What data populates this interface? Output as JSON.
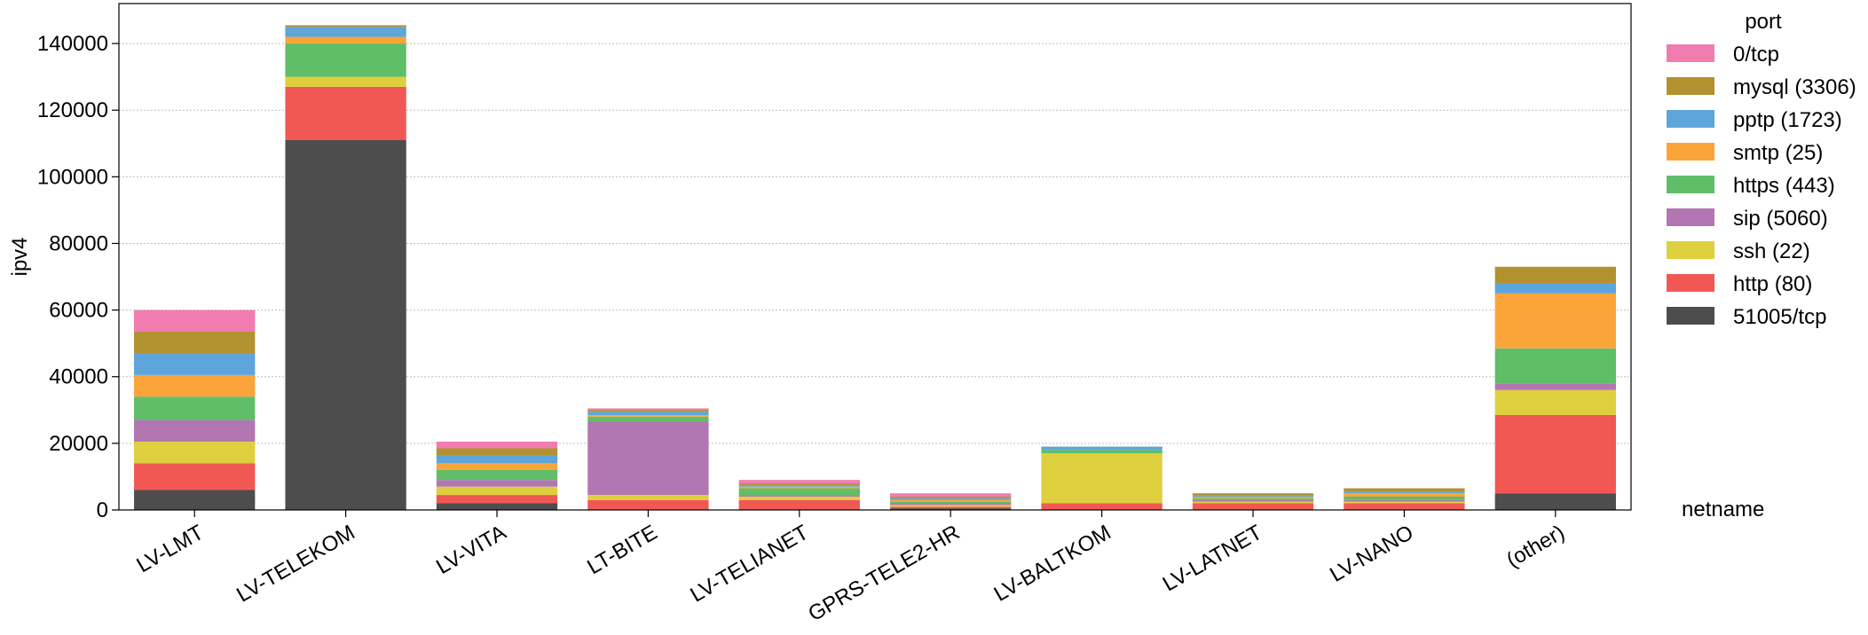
{
  "chart_data": {
    "type": "bar",
    "stacked": true,
    "ylabel": "ipv4",
    "xlabel": "netname",
    "ylim": [
      0,
      152000
    ],
    "yticks": [
      0,
      20000,
      40000,
      60000,
      80000,
      100000,
      120000,
      140000
    ],
    "grid": "horizontal, dotted",
    "categories": [
      "LV-LMT",
      "LV-TELEKOM",
      "LV-VITA",
      "LT-BITE",
      "LV-TELIANET",
      "GPRS-TELE2-HR",
      "LV-BALTKOM",
      "LV-LATNET",
      "LV-NANO",
      "(other)"
    ],
    "legend": {
      "title": "port",
      "placement": "right, outside"
    },
    "series": [
      {
        "name": "51005/tcp",
        "color": "#4d4d4d",
        "values": [
          6000,
          111000,
          2000,
          0,
          0,
          500,
          0,
          0,
          0,
          5000
        ]
      },
      {
        "name": "http (80)",
        "color": "#f15854",
        "values": [
          8000,
          16000,
          2500,
          3000,
          3000,
          500,
          2000,
          2000,
          2000,
          23500
        ]
      },
      {
        "name": "ssh (22)",
        "color": "#decf3f",
        "values": [
          6500,
          3000,
          2500,
          1500,
          1000,
          500,
          15000,
          500,
          500,
          7500
        ]
      },
      {
        "name": "sip (5060)",
        "color": "#b276b2",
        "values": [
          6500,
          0,
          2000,
          22000,
          500,
          500,
          0,
          500,
          500,
          2000
        ]
      },
      {
        "name": "https (443)",
        "color": "#60bd68",
        "values": [
          7000,
          10000,
          3000,
          1500,
          2000,
          500,
          1000,
          500,
          1000,
          10500
        ]
      },
      {
        "name": "smtp (25)",
        "color": "#faa43a",
        "values": [
          6500,
          2000,
          2000,
          500,
          500,
          500,
          0,
          500,
          1000,
          16500
        ]
      },
      {
        "name": "pptp (1723)",
        "color": "#5da5da",
        "values": [
          6500,
          3000,
          2500,
          1000,
          500,
          500,
          1000,
          500,
          500,
          3000
        ]
      },
      {
        "name": "mysql (3306)",
        "color": "#b2912f",
        "values": [
          6500,
          500,
          2000,
          500,
          500,
          500,
          0,
          500,
          1000,
          5000
        ]
      },
      {
        "name": "0/tcp",
        "color": "#f17cb0",
        "values": [
          6500,
          0,
          2000,
          500,
          1000,
          1000,
          0,
          0,
          0,
          0
        ]
      }
    ]
  }
}
